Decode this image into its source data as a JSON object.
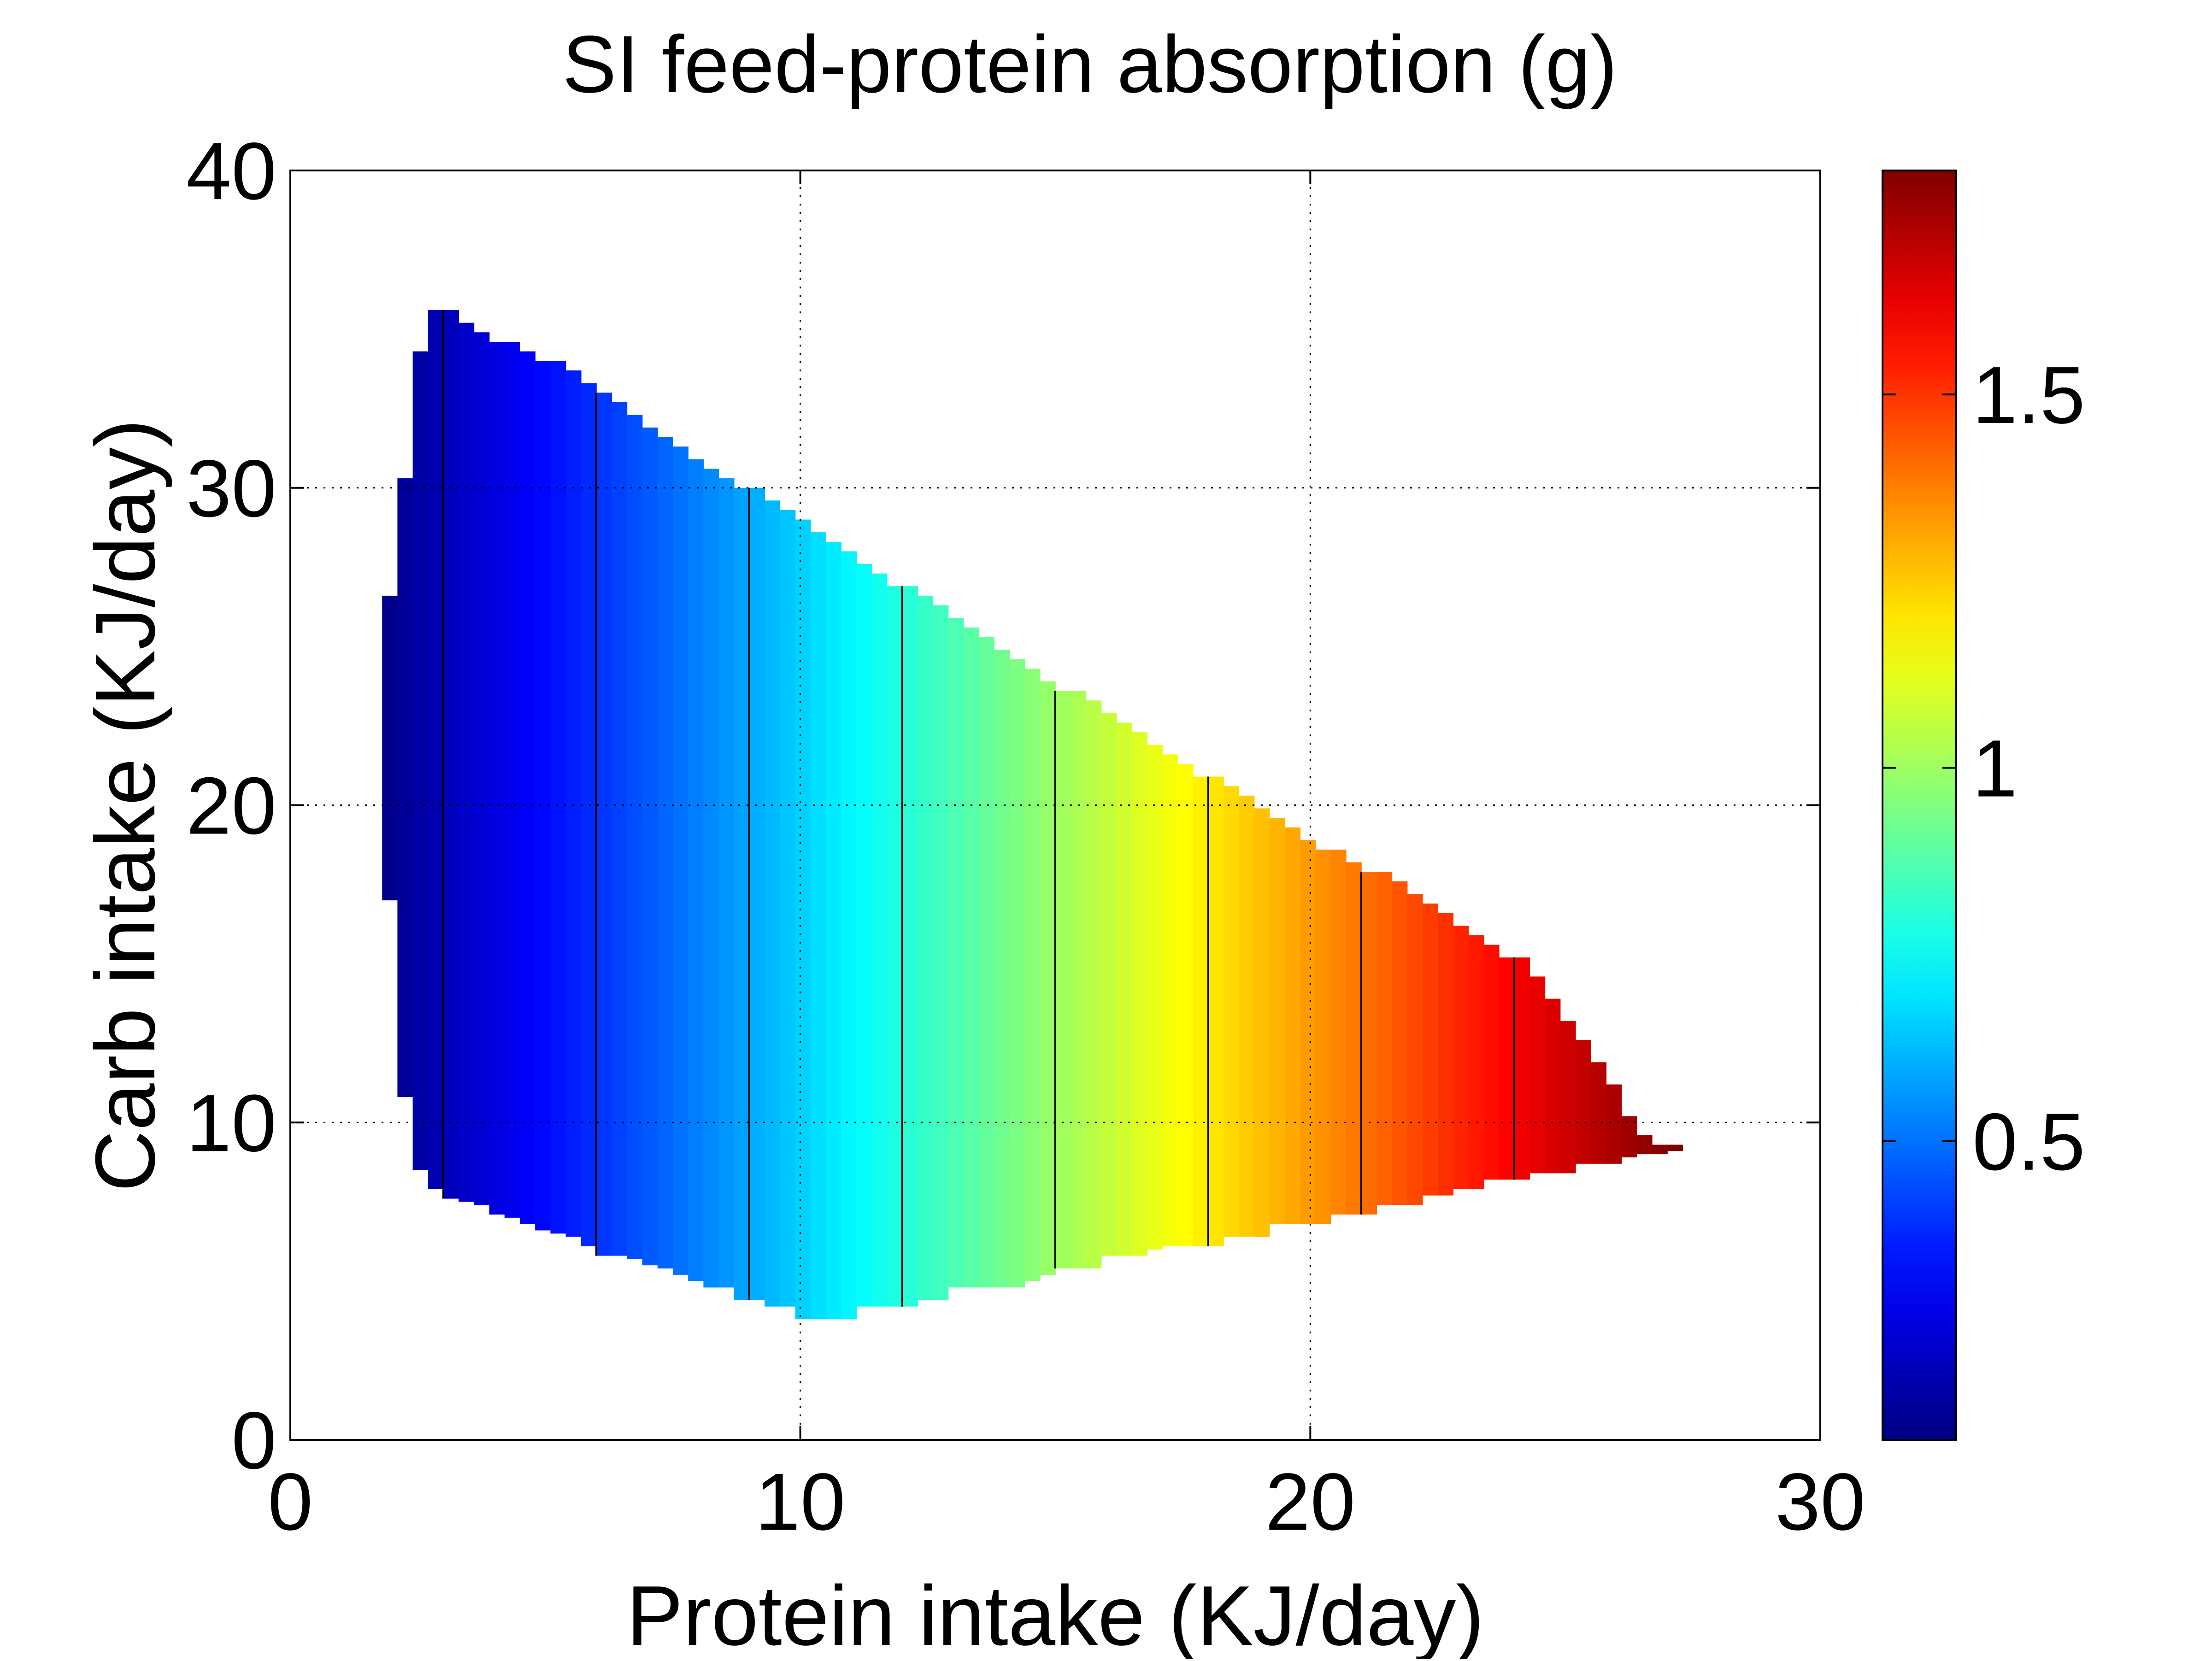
{
  "chart_data": {
    "type": "heatmap",
    "title": "SI feed-protein absorption (g)",
    "xlabel": "Protein intake (KJ/day)",
    "ylabel": "Carb intake (KJ/day)",
    "xlim": [
      0,
      30
    ],
    "ylim": [
      0,
      40
    ],
    "x_ticks": [
      "0",
      "10",
      "20",
      "30"
    ],
    "y_ticks": [
      "0",
      "10",
      "20",
      "30",
      "40"
    ],
    "grid": true,
    "grid_style": "dotted",
    "colormap": "jet",
    "colorbar": {
      "position": "right",
      "clim": [
        0.1,
        1.8
      ],
      "ticks": [
        0.5,
        1,
        1.5
      ],
      "tick_labels": [
        "0.5",
        "1",
        "1.5"
      ]
    },
    "region": {
      "x_step": 0.3,
      "upper_boundary": [
        [
          1.8,
          26.6
        ],
        [
          2.1,
          30.3
        ],
        [
          2.4,
          34.3
        ],
        [
          2.7,
          35.6
        ],
        [
          3.0,
          35.6
        ],
        [
          3.3,
          35.2
        ],
        [
          3.6,
          34.9
        ],
        [
          3.9,
          34.6
        ],
        [
          4.2,
          34.6
        ],
        [
          4.5,
          34.3
        ],
        [
          4.8,
          34.0
        ],
        [
          5.1,
          34.0
        ],
        [
          5.4,
          33.7
        ],
        [
          5.7,
          33.3
        ],
        [
          6.0,
          33.0
        ],
        [
          6.3,
          32.7
        ],
        [
          6.6,
          32.3
        ],
        [
          6.9,
          31.9
        ],
        [
          7.2,
          31.6
        ],
        [
          7.5,
          31.3
        ],
        [
          7.8,
          30.9
        ],
        [
          8.1,
          30.6
        ],
        [
          8.4,
          30.3
        ],
        [
          8.7,
          30.0
        ],
        [
          9.0,
          30.0
        ],
        [
          9.3,
          29.6
        ],
        [
          9.6,
          29.3
        ],
        [
          9.9,
          29.0
        ],
        [
          10.2,
          28.6
        ],
        [
          10.5,
          28.3
        ],
        [
          10.8,
          28.0
        ],
        [
          11.1,
          27.6
        ],
        [
          11.4,
          27.3
        ],
        [
          11.7,
          26.9
        ],
        [
          12.0,
          26.9
        ],
        [
          12.3,
          26.6
        ],
        [
          12.6,
          26.3
        ],
        [
          12.9,
          25.9
        ],
        [
          13.2,
          25.6
        ],
        [
          13.5,
          25.3
        ],
        [
          13.8,
          24.9
        ],
        [
          14.1,
          24.6
        ],
        [
          14.4,
          24.3
        ],
        [
          14.7,
          23.9
        ],
        [
          15.0,
          23.6
        ],
        [
          15.3,
          23.6
        ],
        [
          15.6,
          23.3
        ],
        [
          15.9,
          22.9
        ],
        [
          16.2,
          22.6
        ],
        [
          16.5,
          22.3
        ],
        [
          16.8,
          21.9
        ],
        [
          17.1,
          21.6
        ],
        [
          17.4,
          21.3
        ],
        [
          17.7,
          20.9
        ],
        [
          18.0,
          20.9
        ],
        [
          18.3,
          20.6
        ],
        [
          18.6,
          20.3
        ],
        [
          18.9,
          19.9
        ],
        [
          19.2,
          19.6
        ],
        [
          19.5,
          19.3
        ],
        [
          19.8,
          18.9
        ],
        [
          20.1,
          18.6
        ],
        [
          20.4,
          18.6
        ],
        [
          20.7,
          18.2
        ],
        [
          21.0,
          17.9
        ],
        [
          21.3,
          17.9
        ],
        [
          21.6,
          17.6
        ],
        [
          21.9,
          17.2
        ],
        [
          22.2,
          16.9
        ],
        [
          22.5,
          16.6
        ],
        [
          22.8,
          16.2
        ],
        [
          23.1,
          15.9
        ],
        [
          23.4,
          15.6
        ],
        [
          23.7,
          15.2
        ],
        [
          24.0,
          15.2
        ],
        [
          24.3,
          14.6
        ],
        [
          24.6,
          13.9
        ],
        [
          24.9,
          13.2
        ],
        [
          25.2,
          12.6
        ],
        [
          25.5,
          11.9
        ],
        [
          25.8,
          11.2
        ],
        [
          26.1,
          10.2
        ],
        [
          26.4,
          9.6
        ],
        [
          26.7,
          9.3
        ],
        [
          27.0,
          9.3
        ]
      ],
      "lower_boundary": [
        [
          1.8,
          17.0
        ],
        [
          2.1,
          10.8
        ],
        [
          2.4,
          8.5
        ],
        [
          2.7,
          7.9
        ],
        [
          3.0,
          7.6
        ],
        [
          3.3,
          7.5
        ],
        [
          3.6,
          7.4
        ],
        [
          3.9,
          7.1
        ],
        [
          4.2,
          7.0
        ],
        [
          4.5,
          6.8
        ],
        [
          4.8,
          6.6
        ],
        [
          5.1,
          6.5
        ],
        [
          5.4,
          6.4
        ],
        [
          5.7,
          6.1
        ],
        [
          6.0,
          5.8
        ],
        [
          6.3,
          5.8
        ],
        [
          6.6,
          5.7
        ],
        [
          6.9,
          5.5
        ],
        [
          7.2,
          5.4
        ],
        [
          7.5,
          5.2
        ],
        [
          7.8,
          5.0
        ],
        [
          8.1,
          4.8
        ],
        [
          8.4,
          4.8
        ],
        [
          8.7,
          4.4
        ],
        [
          9.0,
          4.4
        ],
        [
          9.3,
          4.2
        ],
        [
          9.6,
          4.2
        ],
        [
          9.9,
          3.8
        ],
        [
          10.2,
          3.8
        ],
        [
          10.5,
          3.8
        ],
        [
          10.8,
          3.8
        ],
        [
          11.1,
          4.2
        ],
        [
          11.4,
          4.2
        ],
        [
          11.7,
          4.2
        ],
        [
          12.0,
          4.2
        ],
        [
          12.3,
          4.4
        ],
        [
          12.6,
          4.4
        ],
        [
          12.9,
          4.8
        ],
        [
          13.2,
          4.8
        ],
        [
          13.5,
          4.8
        ],
        [
          13.8,
          4.8
        ],
        [
          14.1,
          4.8
        ],
        [
          14.4,
          5.0
        ],
        [
          14.7,
          5.2
        ],
        [
          15.0,
          5.4
        ],
        [
          15.3,
          5.4
        ],
        [
          15.6,
          5.4
        ],
        [
          15.9,
          5.8
        ],
        [
          16.2,
          5.8
        ],
        [
          16.5,
          5.8
        ],
        [
          16.8,
          6.0
        ],
        [
          17.1,
          6.1
        ],
        [
          17.4,
          6.1
        ],
        [
          17.7,
          6.1
        ],
        [
          18.0,
          6.1
        ],
        [
          18.3,
          6.4
        ],
        [
          18.6,
          6.4
        ],
        [
          18.9,
          6.4
        ],
        [
          19.2,
          6.8
        ],
        [
          19.5,
          6.8
        ],
        [
          19.8,
          6.8
        ],
        [
          20.1,
          6.8
        ],
        [
          20.4,
          7.1
        ],
        [
          20.7,
          7.1
        ],
        [
          21.0,
          7.1
        ],
        [
          21.3,
          7.4
        ],
        [
          21.6,
          7.4
        ],
        [
          21.9,
          7.4
        ],
        [
          22.2,
          7.7
        ],
        [
          22.5,
          7.7
        ],
        [
          22.8,
          7.9
        ],
        [
          23.1,
          7.9
        ],
        [
          23.4,
          8.2
        ],
        [
          23.7,
          8.2
        ],
        [
          24.0,
          8.2
        ],
        [
          24.3,
          8.4
        ],
        [
          24.6,
          8.4
        ],
        [
          24.9,
          8.4
        ],
        [
          25.2,
          8.7
        ],
        [
          25.5,
          8.7
        ],
        [
          25.8,
          8.7
        ],
        [
          26.1,
          8.9
        ],
        [
          26.4,
          9.0
        ],
        [
          26.7,
          9.0
        ],
        [
          27.0,
          9.1
        ]
      ],
      "value_at_x": [
        [
          1.8,
          0.11
        ],
        [
          27.0,
          1.8
        ]
      ]
    },
    "contour_lines_x": [
      3,
      6,
      9,
      12,
      15,
      18,
      21,
      24
    ]
  }
}
